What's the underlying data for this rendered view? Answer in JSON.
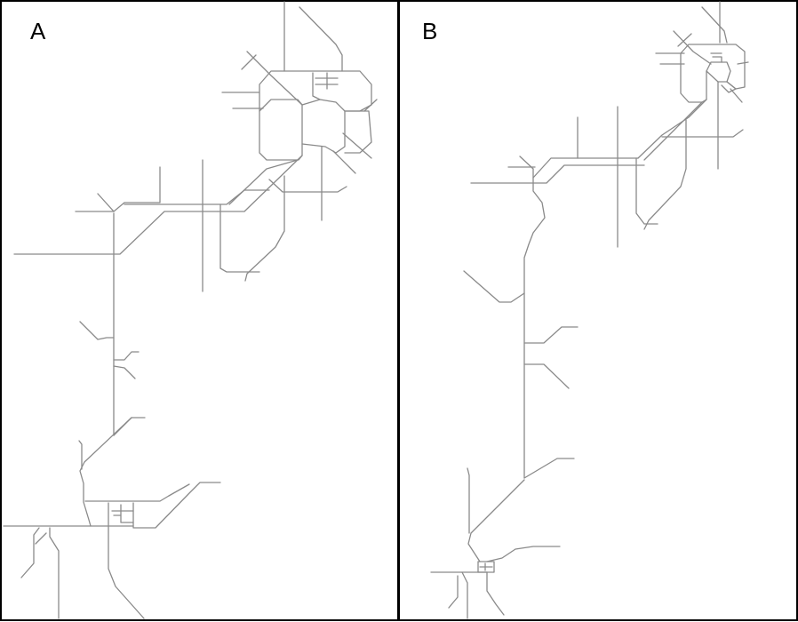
{
  "panels": [
    {
      "id": "A",
      "label": "A"
    },
    {
      "id": "B",
      "label": "B"
    }
  ],
  "colors": {
    "road": "#8a8a8a",
    "frame": "#000000",
    "background": "#ffffff"
  }
}
